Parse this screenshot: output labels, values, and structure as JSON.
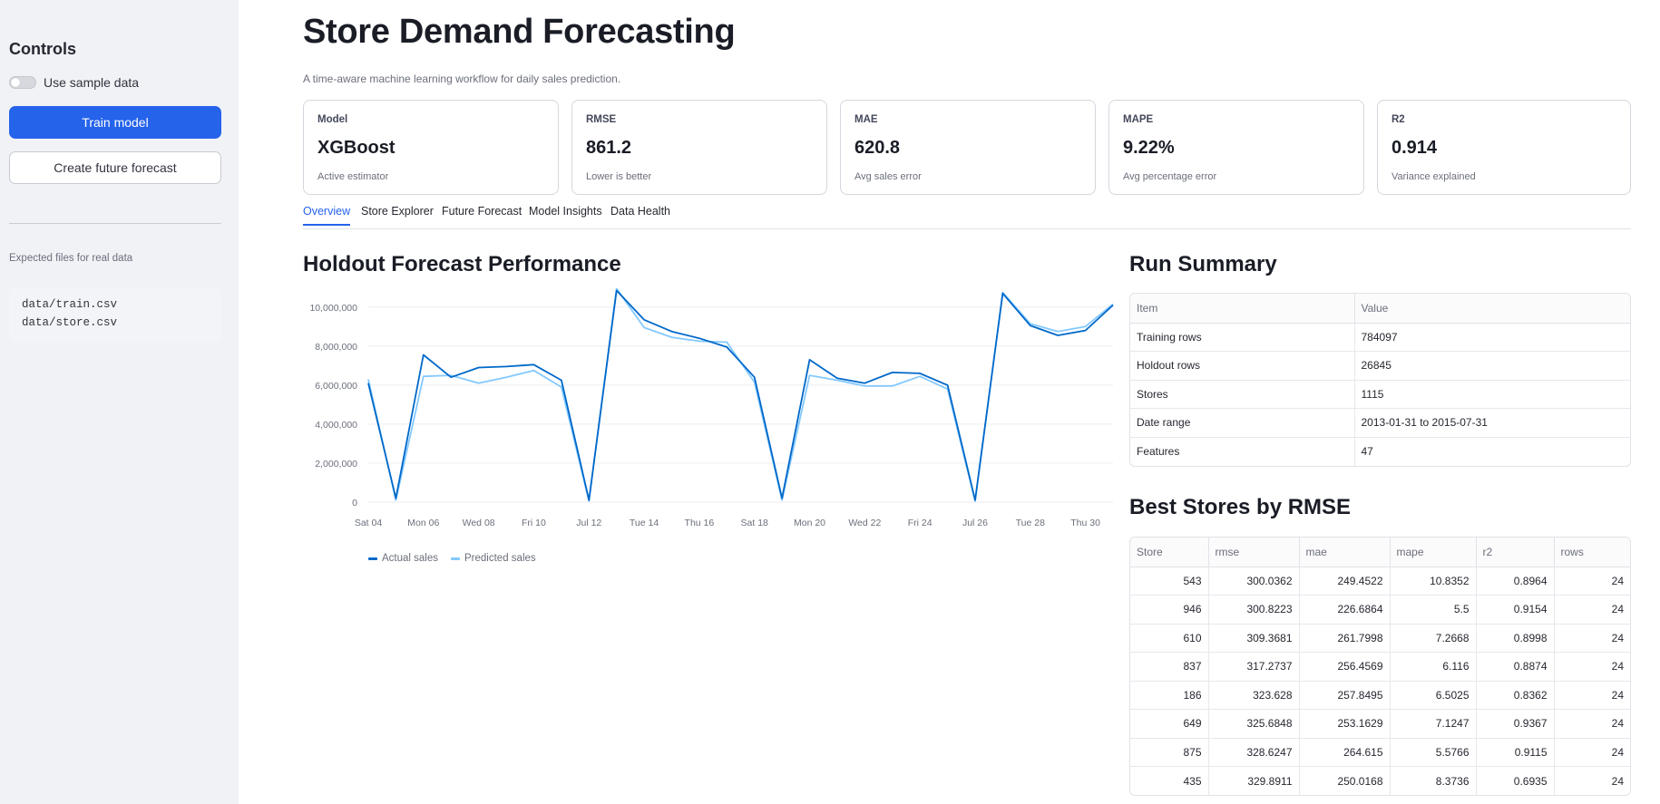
{
  "sidebar": {
    "title": "Controls",
    "toggle_label": "Use sample data",
    "train_button": "Train model",
    "forecast_button": "Create future forecast",
    "note": "Expected files for real data",
    "files": [
      "data/train.csv",
      "data/store.csv"
    ]
  },
  "header": {
    "title": "Store Demand Forecasting",
    "subtitle": "A time-aware machine learning workflow for daily sales prediction."
  },
  "metrics": [
    {
      "label": "Model",
      "value": "XGBoost",
      "sub": "Active estimator"
    },
    {
      "label": "RMSE",
      "value": "861.2",
      "sub": "Lower is better"
    },
    {
      "label": "MAE",
      "value": "620.8",
      "sub": "Avg sales error"
    },
    {
      "label": "MAPE",
      "value": "9.22%",
      "sub": "Avg percentage error"
    },
    {
      "label": "R2",
      "value": "0.914",
      "sub": "Variance explained"
    }
  ],
  "tabs": [
    "Overview",
    "Store Explorer",
    "Future Forecast",
    "Model Insights",
    "Data Health"
  ],
  "chart_section": {
    "title": "Holdout Forecast Performance"
  },
  "chart_data": {
    "type": "line",
    "x": [
      "Jul 04",
      "Jul 05",
      "Jul 06",
      "Jul 07",
      "Jul 08",
      "Jul 09",
      "Jul 10",
      "Jul 11",
      "Jul 12",
      "Jul 13",
      "Jul 14",
      "Jul 15",
      "Jul 16",
      "Jul 17",
      "Jul 18",
      "Jul 19",
      "Jul 20",
      "Jul 21",
      "Jul 22",
      "Jul 23",
      "Jul 24",
      "Jul 25",
      "Jul 26",
      "Jul 27",
      "Jul 28",
      "Jul 29",
      "Jul 30",
      "Jul 31"
    ],
    "tick_labels": [
      "Sat 04",
      "Mon 06",
      "Wed 08",
      "Fri 10",
      "Jul 12",
      "Tue 14",
      "Thu 16",
      "Sat 18",
      "Mon 20",
      "Wed 22",
      "Fri 24",
      "Jul 26",
      "Tue 28",
      "Thu 30"
    ],
    "tick_indices": [
      0,
      2,
      4,
      6,
      8,
      10,
      12,
      14,
      16,
      18,
      20,
      22,
      24,
      26
    ],
    "yticks": [
      "0",
      "2,000,000",
      "4,000,000",
      "6,000,000",
      "8,000,000",
      "10,000,000"
    ],
    "ylim": [
      0,
      10500000
    ],
    "series": [
      {
        "name": "Actual sales",
        "color": "#0068c9",
        "values": [
          6100000,
          200000,
          7550000,
          6400000,
          6900000,
          6950000,
          7050000,
          6250000,
          100000,
          10850000,
          9350000,
          8750000,
          8400000,
          7950000,
          6400000,
          200000,
          7300000,
          6350000,
          6100000,
          6650000,
          6600000,
          6000000,
          100000,
          10700000,
          9050000,
          8550000,
          8800000,
          10100000
        ]
      },
      {
        "name": "Predicted sales",
        "color": "#83c9ff",
        "values": [
          6300000,
          100000,
          6450000,
          6500000,
          6100000,
          6400000,
          6750000,
          5900000,
          50000,
          10950000,
          8950000,
          8450000,
          8250000,
          8200000,
          6150000,
          100000,
          6500000,
          6250000,
          5950000,
          5950000,
          6450000,
          5800000,
          50000,
          10750000,
          9150000,
          8750000,
          9000000,
          10150000
        ]
      }
    ]
  },
  "run_summary": {
    "title": "Run Summary",
    "headers": [
      "Item",
      "Value"
    ],
    "rows": [
      [
        "Training rows",
        "784097"
      ],
      [
        "Holdout rows",
        "26845"
      ],
      [
        "Stores",
        "1115"
      ],
      [
        "Date range",
        "2013-01-31 to 2015-07-31"
      ],
      [
        "Features",
        "47"
      ]
    ]
  },
  "best_stores": {
    "title": "Best Stores by RMSE",
    "headers": [
      "Store",
      "rmse",
      "mae",
      "mape",
      "r2",
      "rows"
    ],
    "rows": [
      [
        "543",
        "300.0362",
        "249.4522",
        "10.8352",
        "0.8964",
        "24"
      ],
      [
        "946",
        "300.8223",
        "226.6864",
        "5.5",
        "0.9154",
        "24"
      ],
      [
        "610",
        "309.3681",
        "261.7998",
        "7.2668",
        "0.8998",
        "24"
      ],
      [
        "837",
        "317.2737",
        "256.4569",
        "6.116",
        "0.8874",
        "24"
      ],
      [
        "186",
        "323.628",
        "257.8495",
        "6.5025",
        "0.8362",
        "24"
      ],
      [
        "649",
        "325.6848",
        "253.1629",
        "7.1247",
        "0.9367",
        "24"
      ],
      [
        "875",
        "328.6247",
        "264.615",
        "5.5766",
        "0.9115",
        "24"
      ],
      [
        "435",
        "329.8911",
        "250.0168",
        "8.3736",
        "0.6935",
        "24"
      ]
    ]
  }
}
